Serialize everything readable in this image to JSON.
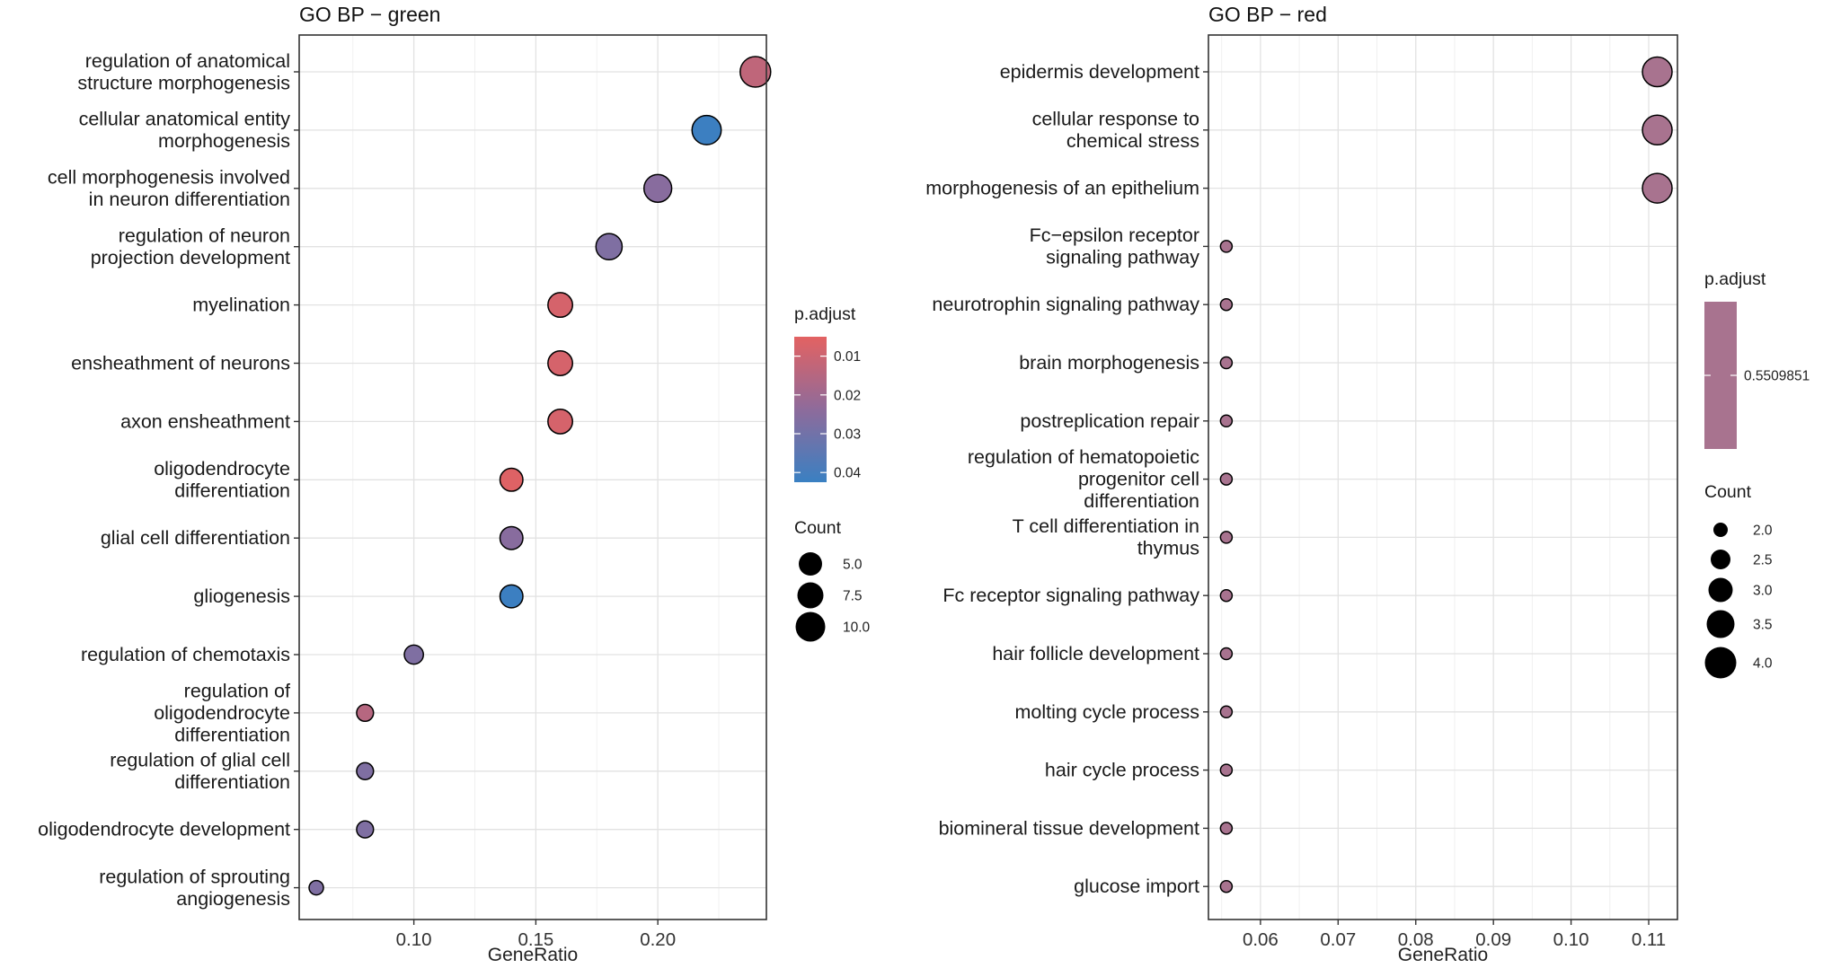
{
  "chart_data": [
    {
      "type": "scatter",
      "title": "GO BP − green",
      "xlabel": "GeneRatio",
      "ylabel": "",
      "xlim": [
        0.053,
        0.2445
      ],
      "xticks": [
        "0.10",
        "0.15",
        "0.20"
      ],
      "xtick_values": [
        0.1,
        0.15,
        0.2
      ],
      "grid": true,
      "categories": [
        "regulation of anatomical\nstructure morphogenesis",
        "cellular anatomical entity\nmorphogenesis",
        "cell morphogenesis involved\nin neuron differentiation",
        "regulation of neuron\nprojection development",
        "myelination",
        "ensheathment of neurons",
        "axon ensheathment",
        "oligodendrocyte\ndifferentiation",
        "glial cell differentiation",
        "gliogenesis",
        "regulation of chemotaxis",
        "regulation of\noligodendrocyte\ndifferentiation",
        "regulation of glial cell\ndifferentiation",
        "oligodendrocyte development",
        "regulation of sprouting\nangiogenesis"
      ],
      "x": [
        0.24,
        0.22,
        0.2,
        0.18,
        0.16,
        0.16,
        0.16,
        0.14,
        0.14,
        0.14,
        0.1,
        0.08,
        0.08,
        0.08,
        0.06
      ],
      "count": [
        12,
        11,
        10,
        9,
        8,
        8,
        8,
        7,
        7,
        7,
        5,
        4,
        4,
        4,
        3
      ],
      "p_adjust": [
        0.013,
        0.042,
        0.025,
        0.027,
        0.008,
        0.008,
        0.008,
        0.006,
        0.025,
        0.042,
        0.027,
        0.015,
        0.027,
        0.027,
        0.027
      ],
      "color_legend": {
        "title": "p.adjust",
        "ticks": [
          "0.01",
          "0.02",
          "0.03",
          "0.04"
        ],
        "tick_values": [
          0.01,
          0.02,
          0.03,
          0.04
        ],
        "range": [
          0.005,
          0.0425
        ],
        "low_color": "#E36262",
        "mid_color": "#8E6B9B",
        "high_color": "#3A80C2"
      },
      "size_legend": {
        "title": "Count",
        "labels": [
          "5.0",
          "7.5",
          "10.0"
        ],
        "values": [
          5.0,
          7.5,
          10.0
        ]
      }
    },
    {
      "type": "scatter",
      "title": "GO BP − red",
      "xlabel": "GeneRatio",
      "ylabel": "",
      "xlim": [
        0.0533,
        0.1137
      ],
      "xticks": [
        "0.06",
        "0.07",
        "0.08",
        "0.09",
        "0.10",
        "0.11"
      ],
      "xtick_values": [
        0.06,
        0.07,
        0.08,
        0.09,
        0.1,
        0.11
      ],
      "grid": true,
      "categories": [
        "epidermis development",
        "cellular response to\nchemical stress",
        "morphogenesis of an epithelium",
        "Fc−epsilon receptor\nsignaling pathway",
        "neurotrophin signaling pathway",
        "brain morphogenesis",
        "postreplication repair",
        "regulation of hematopoietic\nprogenitor cell\ndifferentiation",
        "T cell differentiation in\nthymus",
        "Fc receptor signaling pathway",
        "hair follicle development",
        "molting cycle process",
        "hair cycle process",
        "biomineral tissue development",
        "glucose import"
      ],
      "x": [
        0.1111,
        0.1111,
        0.1111,
        0.0556,
        0.0556,
        0.0556,
        0.0556,
        0.0556,
        0.0556,
        0.0556,
        0.0556,
        0.0556,
        0.0556,
        0.0556,
        0.0556
      ],
      "count": [
        4,
        4,
        4,
        2,
        2,
        2,
        2,
        2,
        2,
        2,
        2,
        2,
        2,
        2,
        2
      ],
      "p_adjust": [
        0.5509851,
        0.5509851,
        0.5509851,
        0.5509851,
        0.5509851,
        0.5509851,
        0.5509851,
        0.5509851,
        0.5509851,
        0.5509851,
        0.5509851,
        0.5509851,
        0.5509851,
        0.5509851,
        0.5509851
      ],
      "color_legend": {
        "title": "p.adjust",
        "ticks": [
          "0.5509851"
        ],
        "single_color": "#A8738F"
      },
      "size_legend": {
        "title": "Count",
        "labels": [
          "2.0",
          "2.5",
          "3.0",
          "3.5",
          "4.0"
        ],
        "values": [
          2.0,
          2.5,
          3.0,
          3.5,
          4.0
        ]
      }
    }
  ]
}
